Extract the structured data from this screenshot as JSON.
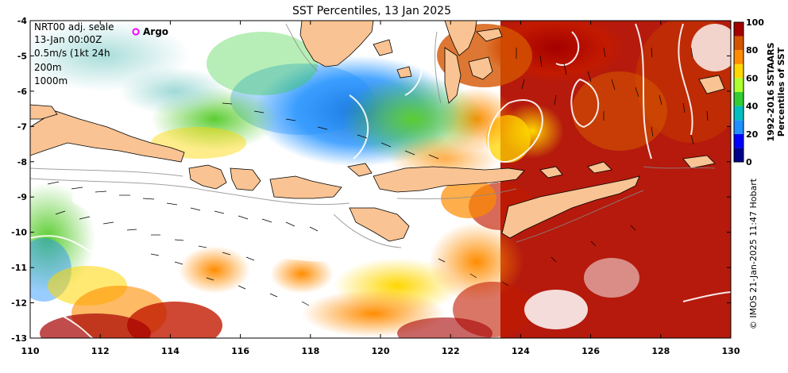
{
  "title": "SST Percentiles, 13 Jan 2025",
  "annotations": {
    "line1": "NRT00 adj. seale",
    "line2": "13-Jan 00:00Z",
    "line3": "0.5m/s (1kt 24h",
    "line4": "200m",
    "line5": "1000m"
  },
  "argo_label": "Argo",
  "colorbar": {
    "title_line1": "1992-2016 SSTAARS",
    "title_line2": "Percentiles of SST",
    "ticks": [
      "100",
      "80",
      "60",
      "40",
      "20",
      "0"
    ],
    "colors": [
      "#00008b",
      "#0000ff",
      "#1e90ff",
      "#00bfbf",
      "#32cd32",
      "#adff2f",
      "#ffd700",
      "#ff8c00",
      "#d45500",
      "#a50000"
    ]
  },
  "credit": "© IMOS 21-Jan-2025 11:47 Hobart",
  "axes": {
    "x_ticks": [
      "110",
      "112",
      "114",
      "116",
      "118",
      "120",
      "122",
      "124",
      "126",
      "128",
      "130"
    ],
    "y_ticks": [
      "-4",
      "-5",
      "-6",
      "-7",
      "-8",
      "-9",
      "-10",
      "-11",
      "-12",
      "-13"
    ]
  },
  "colors": {
    "land": "#f9c393",
    "coast": "#000000",
    "argo_marker": "#ff00ff"
  }
}
